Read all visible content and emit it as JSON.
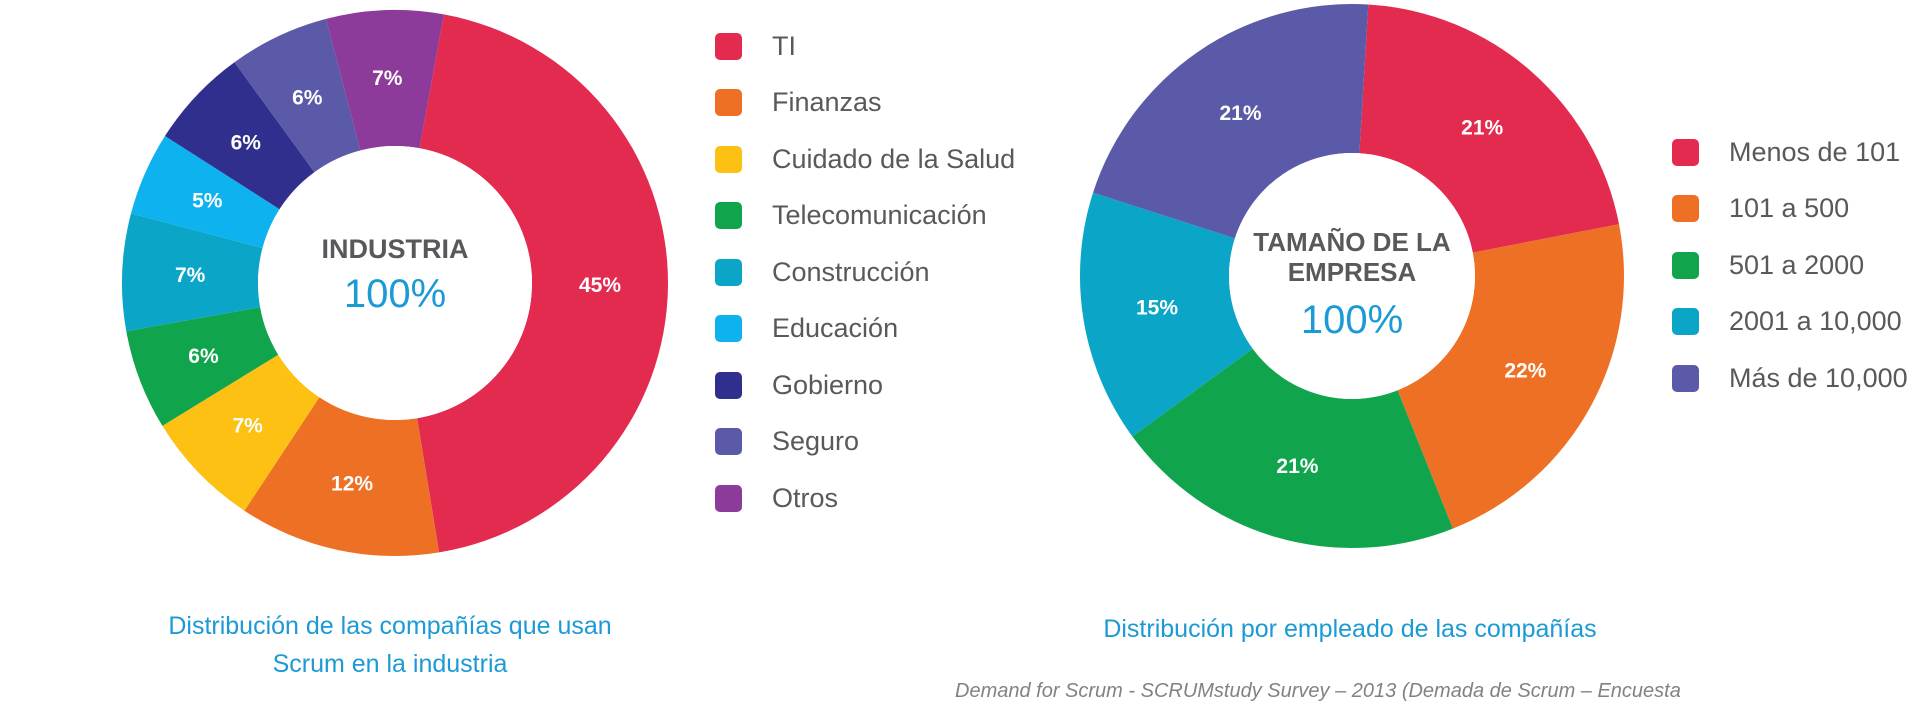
{
  "chart_data": [
    {
      "type": "pie",
      "title": "",
      "center_title": [
        "INDUSTRIA"
      ],
      "center_value": "100%",
      "legend_position": "right",
      "caption": [
        "Distribución de las compañías que usan",
        "Scrum en la industria"
      ],
      "categories": [
        "TI",
        "Finanzas",
        "Cuidado de la Salud",
        "Telecomunicación",
        "Construcción",
        "Educación",
        "Gobierno",
        "Seguro",
        "Otros"
      ],
      "values": [
        45,
        12,
        7,
        6,
        7,
        5,
        6,
        6,
        7
      ],
      "labels": [
        "45%",
        "12%",
        "7%",
        "6%",
        "7%",
        "5%",
        "6%",
        "6%",
        "7%"
      ],
      "colors": [
        "#e32b4f",
        "#ee7024",
        "#fdc114",
        "#10a54c",
        "#0aa5c7",
        "#0db2ef",
        "#312f8d",
        "#5b5aa8",
        "#8d3b9a"
      ]
    },
    {
      "type": "pie",
      "title": "",
      "center_title": [
        "TAMAÑO DE LA",
        "EMPRESA"
      ],
      "center_value": "100%",
      "legend_position": "right",
      "caption": [
        "Distribución por empleado de las compañías"
      ],
      "categories": [
        "Menos de 101",
        "101 a 500",
        "501 a 2000",
        "2001 a 10,000",
        "Más de 10,000"
      ],
      "values": [
        21,
        22,
        21,
        15,
        21
      ],
      "labels": [
        "21%",
        "22%",
        "21%",
        "15%",
        "21%"
      ],
      "colors": [
        "#e32b4f",
        "#ee7024",
        "#10a54c",
        "#0aa5c7",
        "#5b5aa8"
      ]
    }
  ],
  "source_text": "Demand for Scrum - SCRUMstudy Survey – 2013 (Demada de Scrum – Encuesta"
}
